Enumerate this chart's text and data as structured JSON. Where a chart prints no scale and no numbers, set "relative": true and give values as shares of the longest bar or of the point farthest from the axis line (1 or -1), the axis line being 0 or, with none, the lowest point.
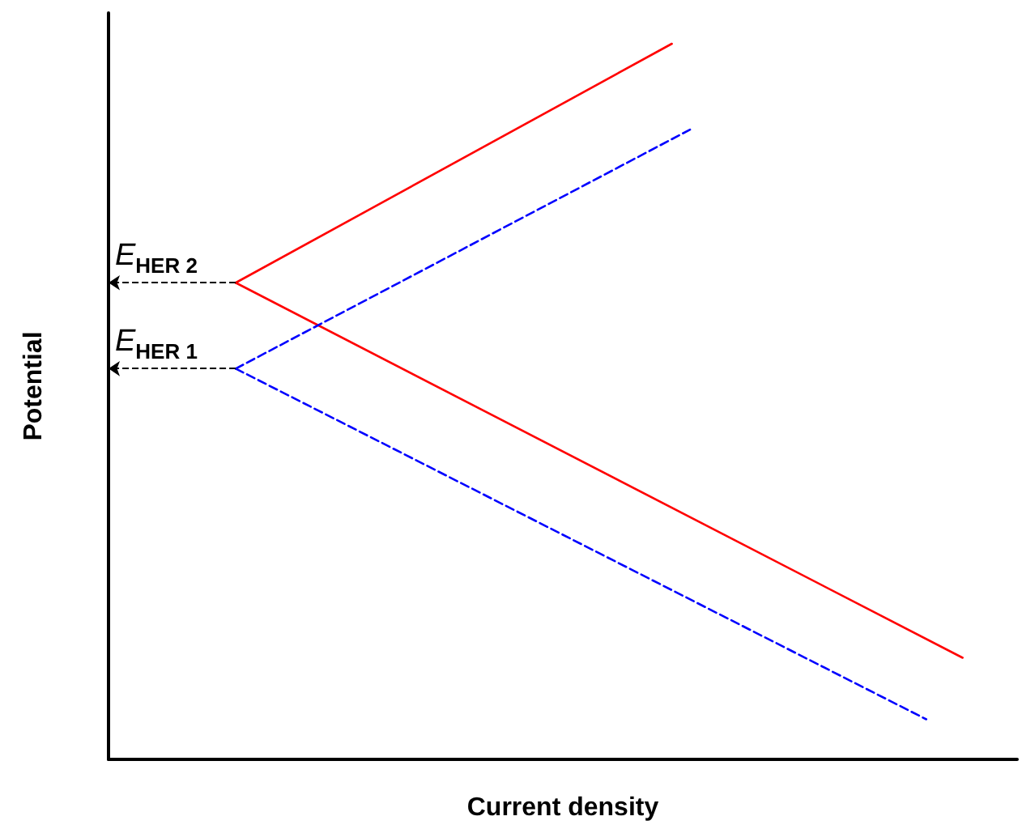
{
  "chart_data": {
    "type": "line",
    "relative": true,
    "xlabel": "Current density",
    "ylabel": "Potential",
    "grid": false,
    "marker": "none",
    "categories": [
      null,
      null,
      null,
      null,
      null,
      null,
      null,
      null,
      null,
      null,
      null,
      null,
      null,
      null,
      null,
      null,
      null,
      null,
      null,
      null,
      null,
      null,
      null,
      null,
      null,
      null,
      null,
      null,
      null,
      null,
      null,
      null,
      null,
      null,
      null,
      null,
      null,
      null,
      null,
      null,
      null,
      null,
      null,
      null,
      null,
      null,
      null,
      null,
      null,
      null,
      null
    ],
    "series": [
      {
        "color": "#ff0000",
        "line_style": "solid",
        "values": [
          null,
          null,
          null,
          null,
          null,
          null,
          null,
          0.666,
          null,
          null,
          null,
          null,
          null,
          null,
          null,
          null,
          null,
          null,
          null,
          null,
          null,
          null,
          null,
          null,
          null,
          null,
          null,
          null,
          null,
          null,
          null,
          1,
          null,
          null,
          null,
          null,
          null,
          null,
          null,
          null,
          null,
          null,
          null,
          null,
          null,
          null,
          null,
          null,
          null,
          null,
          null
        ]
      },
      {
        "color": "#ff0000",
        "line_style": "solid",
        "values": [
          null,
          null,
          null,
          null,
          null,
          null,
          null,
          0.666,
          null,
          null,
          null,
          null,
          null,
          null,
          null,
          null,
          null,
          null,
          null,
          null,
          null,
          null,
          null,
          null,
          null,
          null,
          null,
          null,
          null,
          null,
          null,
          null,
          null,
          null,
          null,
          null,
          null,
          null,
          null,
          null,
          null,
          null,
          null,
          null,
          null,
          null,
          null,
          0.142,
          null,
          null,
          null
        ]
      },
      {
        "color": "#0000ff",
        "line_style": "dashed",
        "values": [
          null,
          null,
          null,
          null,
          null,
          null,
          null,
          0.546,
          null,
          null,
          null,
          null,
          null,
          null,
          null,
          null,
          null,
          null,
          null,
          null,
          null,
          null,
          null,
          null,
          null,
          null,
          null,
          null,
          null,
          null,
          null,
          null,
          0.88,
          null,
          null,
          null,
          null,
          null,
          null,
          null,
          null,
          null,
          null,
          null,
          null,
          null,
          null,
          null,
          null,
          null,
          null
        ]
      },
      {
        "color": "#0000ff",
        "line_style": "dashed",
        "values": [
          null,
          null,
          null,
          null,
          null,
          null,
          null,
          0.546,
          null,
          null,
          null,
          null,
          null,
          null,
          null,
          null,
          null,
          null,
          null,
          null,
          null,
          null,
          null,
          null,
          null,
          null,
          null,
          null,
          null,
          null,
          null,
          null,
          null,
          null,
          null,
          null,
          null,
          null,
          null,
          null,
          null,
          null,
          null,
          null,
          null,
          0.056,
          null,
          null,
          null,
          null,
          null
        ]
      }
    ],
    "ref_lines": [
      {
        "axis": "y",
        "value": 0.666,
        "label": "E$_{HER 2}$",
        "color": "#000000",
        "line_style": "dashed"
      },
      {
        "axis": "y",
        "value": 0.546,
        "label": "E$_{HER 1}$",
        "color": "#000000",
        "line_style": "dashed"
      }
    ]
  }
}
